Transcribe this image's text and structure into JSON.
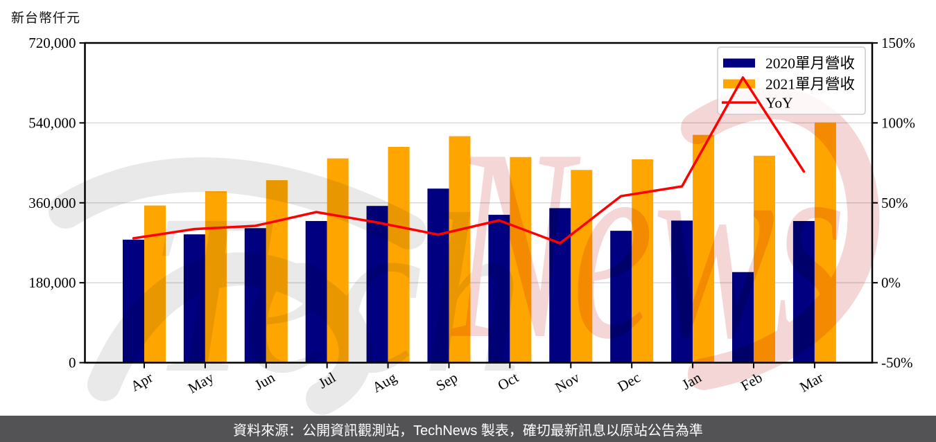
{
  "chart_data": {
    "type": "bar+line",
    "categories": [
      "Apr",
      "May",
      "Jun",
      "Jul",
      "Aug",
      "Sep",
      "Oct",
      "Nov",
      "Dec",
      "Jan",
      "Feb",
      "Mar"
    ],
    "series": [
      {
        "name": "2020單月營收",
        "type": "bar",
        "axis": "left",
        "color": "#000080",
        "values": [
          277000,
          289000,
          303000,
          319000,
          353000,
          392000,
          333000,
          348000,
          297000,
          320000,
          204000,
          319000
        ]
      },
      {
        "name": "2021單月營收",
        "type": "bar",
        "axis": "left",
        "color": "#ffa500",
        "values": [
          354000,
          386000,
          411000,
          460000,
          486000,
          510000,
          463000,
          434000,
          458000,
          513000,
          466000,
          541000
        ]
      },
      {
        "name": "YoY",
        "type": "line",
        "axis": "right",
        "color": "#ff0000",
        "unit": "%",
        "values": [
          27.8,
          33.6,
          35.6,
          44.2,
          37.7,
          30.1,
          39.0,
          24.7,
          54.2,
          60.3,
          128.4,
          69.6
        ]
      }
    ],
    "left_axis": {
      "title": "新台幣仟元",
      "min": 0,
      "max": 720000,
      "tick_values": [
        0,
        180000,
        360000,
        540000,
        720000
      ],
      "tick_labels": [
        "0",
        "180,000",
        "360,000",
        "540,000",
        "720,000"
      ]
    },
    "right_axis": {
      "min": -50,
      "max": 150,
      "tick_values": [
        -50,
        0,
        50,
        100,
        150
      ],
      "tick_labels": [
        "-50%",
        "0%",
        "50%",
        "100%",
        "150%"
      ]
    },
    "grid": true,
    "legend_position": "top-right"
  },
  "legend": {
    "items": [
      {
        "label": "2020單月營收",
        "swatch": "navy-rect"
      },
      {
        "label": "2021單月營收",
        "swatch": "orange-rect"
      },
      {
        "label": "YoY",
        "swatch": "red-line"
      }
    ]
  },
  "watermark": {
    "part1": "Tech",
    "part2": "News",
    "color1": "#e9e9e9",
    "color2": "#f4d6d6"
  },
  "footer": {
    "text": "資料來源：公開資訊觀測站，TechNews 製表，確切最新訊息以原站公告為準",
    "bg_color": "#535355",
    "text_color": "#ffffff"
  },
  "colors": {
    "axis": "#000000",
    "gridline": "#d9d9d9",
    "legend_border": "#cccccc",
    "plot_bg": "#ffffff"
  }
}
